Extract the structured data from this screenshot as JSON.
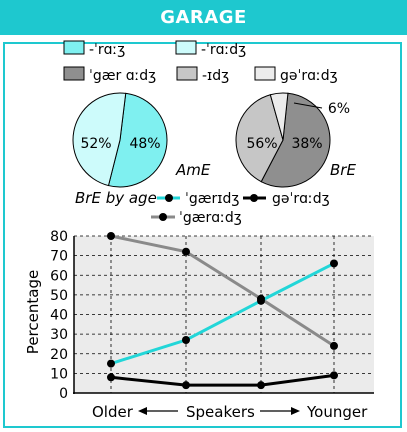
{
  "header": {
    "title": "GARAGE"
  },
  "colors": {
    "accent": "#1ec8cf",
    "ame_1": "#7ff0f0",
    "ame_2": "#cdfbfb",
    "bre_1": "#8f8f8f",
    "bre_2": "#c6c6c6",
    "bre_3": "#ececec",
    "line_cyan": "#22d6d8",
    "line_grey": "#8a8a8a",
    "line_black": "#000000",
    "plot_bg": "#ebebeb"
  },
  "legend": {
    "ame": [
      "-ˈrɑːʒ",
      "-ˈrɑːdʒ"
    ],
    "bre": [
      "ˈgær ɑːdʒ",
      "-ɪdʒ",
      "gəˈrɑːdʒ"
    ]
  },
  "chart_data": [
    {
      "type": "pie",
      "label": "AmE",
      "slices": [
        {
          "name": "-ˈrɑːʒ",
          "value": 52,
          "label": "52%"
        },
        {
          "name": "-ˈrɑːdʒ",
          "value": 48,
          "label": "48%"
        }
      ]
    },
    {
      "type": "pie",
      "label": "BrE",
      "slices": [
        {
          "name": "ˈgær ɑːdʒ",
          "value": 56,
          "label": "56%"
        },
        {
          "name": "-ɪdʒ",
          "value": 38,
          "label": "38%"
        },
        {
          "name": "gəˈrɑːdʒ",
          "value": 6,
          "label": "6%"
        }
      ]
    },
    {
      "type": "line",
      "title": "BrE by age",
      "ylabel": "Percentage",
      "ylim": [
        0,
        80
      ],
      "yticks": [
        0,
        10,
        20,
        30,
        40,
        50,
        60,
        70,
        80
      ],
      "x_positions": [
        0,
        1,
        2,
        3
      ],
      "xlabel_left": "Older",
      "xlabel_center": "Speakers",
      "xlabel_right": "Younger",
      "grid": true,
      "series": [
        {
          "name": "ˈgærɪdʒ",
          "color": "cyan",
          "values": [
            15,
            27,
            47,
            66
          ]
        },
        {
          "name": "ˈgærɑːdʒ",
          "color": "grey",
          "values": [
            80,
            72,
            48,
            24
          ]
        },
        {
          "name": "gəˈrɑːdʒ",
          "color": "black",
          "values": [
            8,
            4,
            4,
            9
          ]
        }
      ]
    }
  ]
}
